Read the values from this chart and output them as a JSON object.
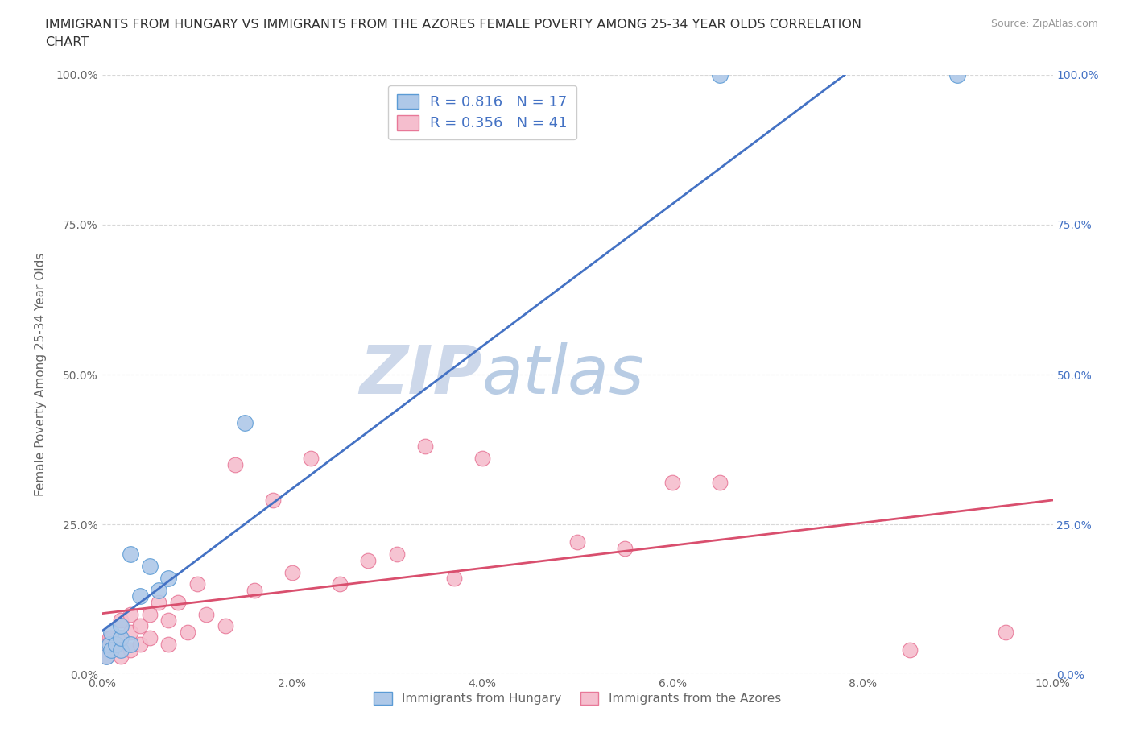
{
  "title_line1": "IMMIGRANTS FROM HUNGARY VS IMMIGRANTS FROM THE AZORES FEMALE POVERTY AMONG 25-34 YEAR OLDS CORRELATION",
  "title_line2": "CHART",
  "source_text": "Source: ZipAtlas.com",
  "ylabel": "Female Poverty Among 25-34 Year Olds",
  "xlim": [
    0.0,
    0.1
  ],
  "ylim": [
    0.0,
    1.0
  ],
  "xtick_labels": [
    "0.0%",
    "2.0%",
    "4.0%",
    "6.0%",
    "8.0%",
    "10.0%"
  ],
  "xtick_values": [
    0.0,
    0.02,
    0.04,
    0.06,
    0.08,
    0.1
  ],
  "ytick_labels": [
    "0.0%",
    "25.0%",
    "50.0%",
    "75.0%",
    "100.0%"
  ],
  "ytick_values": [
    0.0,
    0.25,
    0.5,
    0.75,
    1.0
  ],
  "watermark_zip": "ZIP",
  "watermark_atlas": "atlas",
  "hungary_color": "#aec8e8",
  "hungary_edge_color": "#5b9bd5",
  "azores_color": "#f5bece",
  "azores_edge_color": "#e87898",
  "line_hungary_color": "#4472c4",
  "line_azores_color": "#d94f6e",
  "R_hungary": 0.816,
  "N_hungary": 17,
  "R_azores": 0.356,
  "N_azores": 41,
  "legend_hungary": "Immigrants from Hungary",
  "legend_azores": "Immigrants from the Azores",
  "hungary_x": [
    0.0005,
    0.0008,
    0.001,
    0.001,
    0.0015,
    0.002,
    0.002,
    0.002,
    0.003,
    0.003,
    0.004,
    0.005,
    0.006,
    0.007,
    0.015,
    0.065,
    0.09
  ],
  "hungary_y": [
    0.03,
    0.05,
    0.04,
    0.07,
    0.05,
    0.04,
    0.06,
    0.08,
    0.05,
    0.2,
    0.13,
    0.18,
    0.14,
    0.16,
    0.42,
    1.0,
    1.0
  ],
  "azores_x": [
    0.0002,
    0.0005,
    0.0008,
    0.001,
    0.001,
    0.0015,
    0.002,
    0.002,
    0.002,
    0.003,
    0.003,
    0.003,
    0.004,
    0.004,
    0.005,
    0.005,
    0.006,
    0.007,
    0.007,
    0.008,
    0.009,
    0.01,
    0.011,
    0.013,
    0.014,
    0.016,
    0.018,
    0.02,
    0.022,
    0.025,
    0.028,
    0.031,
    0.034,
    0.037,
    0.04,
    0.05,
    0.055,
    0.06,
    0.065,
    0.085,
    0.095
  ],
  "azores_y": [
    0.04,
    0.03,
    0.06,
    0.04,
    0.06,
    0.05,
    0.03,
    0.06,
    0.09,
    0.04,
    0.07,
    0.1,
    0.05,
    0.08,
    0.06,
    0.1,
    0.12,
    0.05,
    0.09,
    0.12,
    0.07,
    0.15,
    0.1,
    0.08,
    0.35,
    0.14,
    0.29,
    0.17,
    0.36,
    0.15,
    0.19,
    0.2,
    0.38,
    0.16,
    0.36,
    0.22,
    0.21,
    0.32,
    0.32,
    0.04,
    0.07
  ],
  "bg_color": "#ffffff",
  "grid_color": "#d8d8d8",
  "title_color": "#333333",
  "label_color": "#666666",
  "right_ytick_color": "#4472c4",
  "watermark_color_zip": "#cdd8ea",
  "watermark_color_atlas": "#b8cce4",
  "title_fontsize": 11.5,
  "ylabel_fontsize": 11,
  "legend_fontsize": 13,
  "tick_fontsize": 10,
  "source_fontsize": 9
}
